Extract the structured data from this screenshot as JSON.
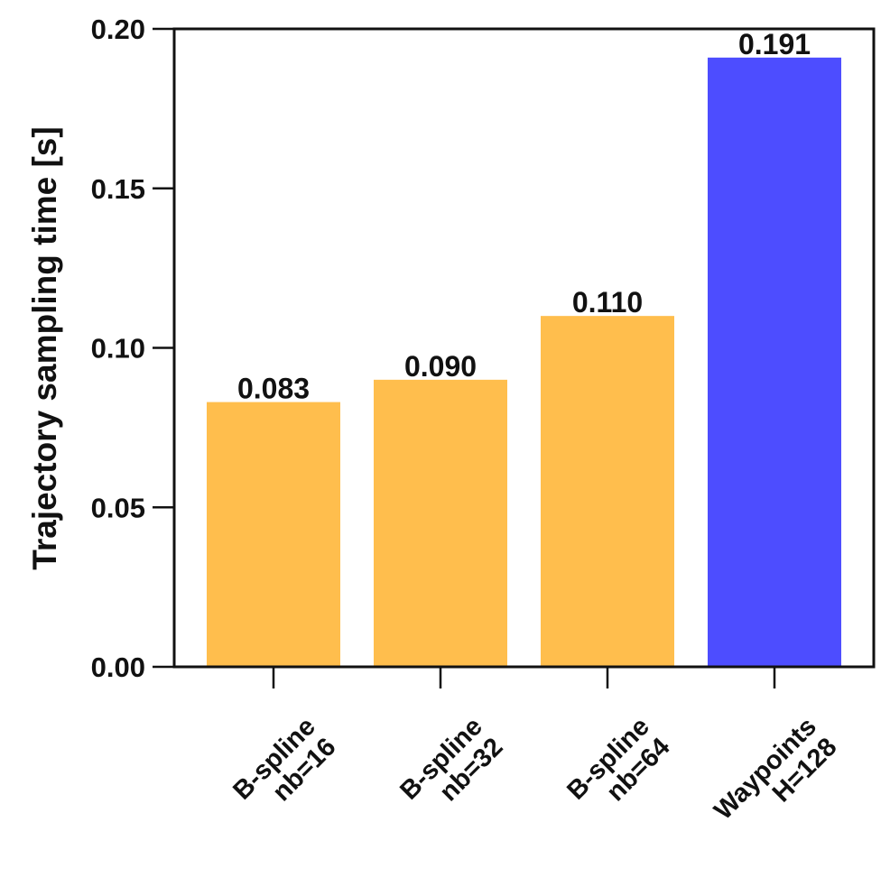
{
  "chart_data": {
    "type": "bar",
    "title": "",
    "xlabel": "",
    "ylabel": "Trajectory sampling time [s]",
    "ylim": [
      0,
      0.2
    ],
    "yticks": [
      "0.00",
      "0.05",
      "0.10",
      "0.15",
      "0.20"
    ],
    "ytick_values": [
      0,
      0.05,
      0.1,
      0.15,
      0.2
    ],
    "grid": false,
    "categories": [
      [
        "B-spline",
        "nb=16"
      ],
      [
        "B-spline",
        "nb=32"
      ],
      [
        "B-spline",
        "nb=64"
      ],
      [
        "Waypoints",
        "H=128"
      ]
    ],
    "values": [
      0.083,
      0.09,
      0.11,
      0.191
    ],
    "value_labels": [
      "0.083",
      "0.090",
      "0.110",
      "0.191"
    ],
    "bar_colors": [
      "#ffbe4d",
      "#ffbe4d",
      "#ffbe4d",
      "#4d4dff"
    ]
  }
}
